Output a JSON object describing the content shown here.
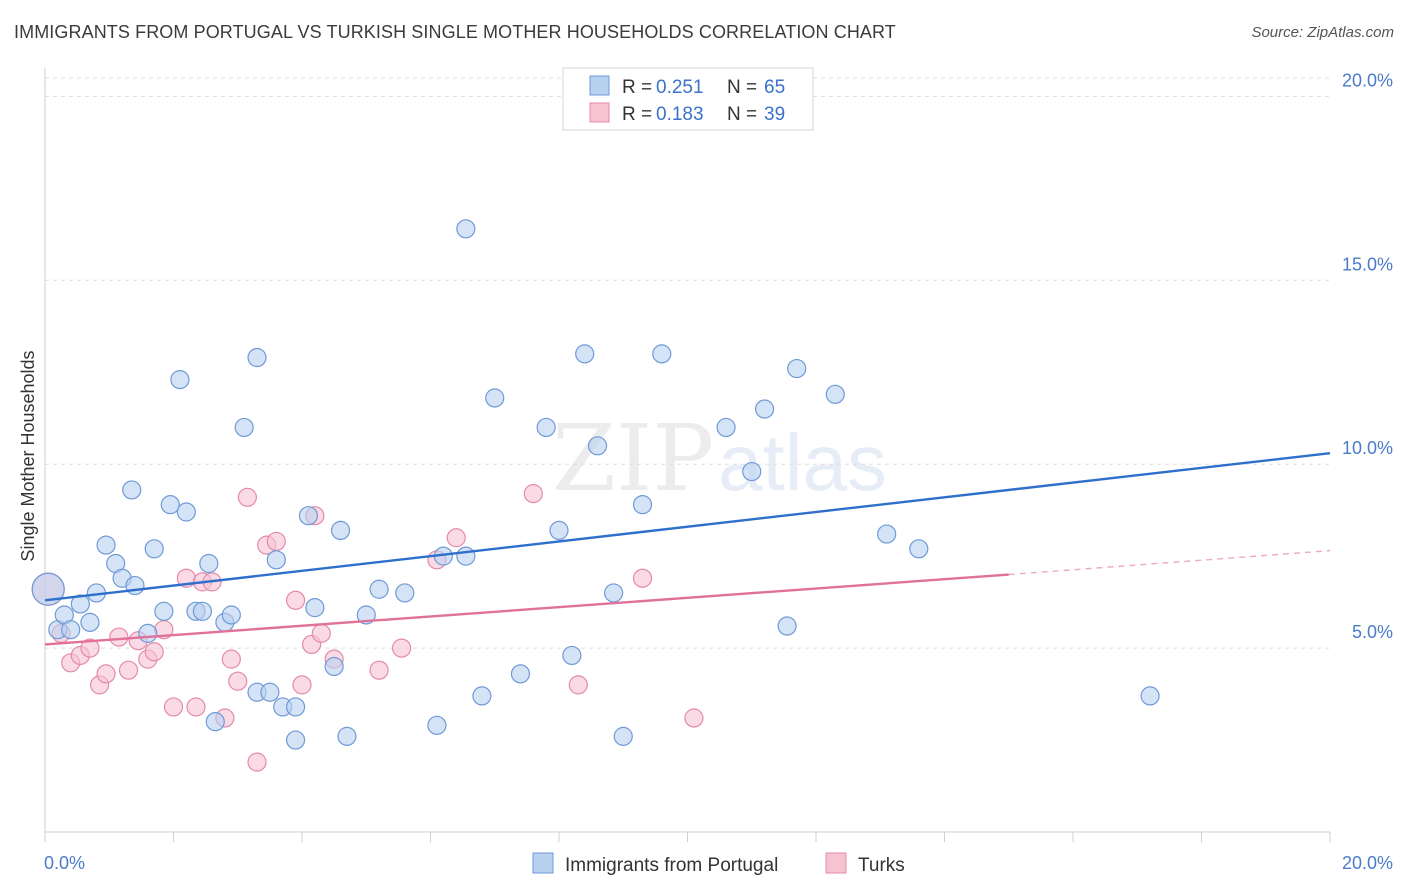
{
  "header": {
    "title": "IMMIGRANTS FROM PORTUGAL VS TURKISH SINGLE MOTHER HOUSEHOLDS CORRELATION CHART",
    "source": "Source: ZipAtlas.com"
  },
  "watermark": {
    "part1": "ZIP",
    "part2": "atlas"
  },
  "colors": {
    "blue_fill": "#b9d1f1",
    "blue_stroke": "#6f9ad6",
    "blue_line": "#2f6fcc",
    "pink_fill": "#f6c3d3",
    "pink_stroke": "#e48aa8",
    "pink_line": "#e0719a",
    "tick_text": "#4a7cc9",
    "grid": "#dddddd"
  },
  "legend": {
    "entries": [
      {
        "r_label": "R =",
        "r_value": "0.251",
        "n_label": "N =",
        "n_value": "65"
      },
      {
        "r_label": "R =",
        "r_value": "0.183",
        "n_label": "N =",
        "n_value": "39"
      }
    ]
  },
  "chart_data": {
    "type": "scatter",
    "ylabel": "Single Mother Households",
    "xlim": [
      0,
      20
    ],
    "ylim": [
      0,
      20.5
    ],
    "x_tick_labels": {
      "left": "0.0%",
      "right": "20.0%"
    },
    "y_ticks": [
      {
        "value": 5,
        "label": "5.0%"
      },
      {
        "value": 10,
        "label": "10.0%"
      },
      {
        "value": 15,
        "label": "15.0%"
      },
      {
        "value": 20,
        "label": "20.0%"
      }
    ],
    "grid": true,
    "series": [
      {
        "name": "Immigrants from Portugal",
        "color": "blue",
        "trend": {
          "x0": 0,
          "y0": 6.3,
          "x1": 20,
          "y1": 10.3
        },
        "points": [
          [
            0.05,
            6.6
          ],
          [
            0.2,
            5.5
          ],
          [
            0.3,
            5.9
          ],
          [
            0.4,
            5.5
          ],
          [
            0.55,
            6.2
          ],
          [
            0.7,
            5.7
          ],
          [
            0.8,
            6.5
          ],
          [
            0.95,
            7.8
          ],
          [
            1.1,
            7.3
          ],
          [
            1.2,
            6.9
          ],
          [
            1.4,
            6.7
          ],
          [
            1.6,
            5.4
          ],
          [
            1.7,
            7.7
          ],
          [
            1.35,
            9.3
          ],
          [
            1.85,
            6.0
          ],
          [
            1.95,
            8.9
          ],
          [
            2.1,
            12.3
          ],
          [
            2.2,
            8.7
          ],
          [
            2.35,
            6.0
          ],
          [
            2.45,
            6.0
          ],
          [
            2.55,
            7.3
          ],
          [
            2.65,
            3.0
          ],
          [
            2.8,
            5.7
          ],
          [
            2.9,
            5.9
          ],
          [
            3.1,
            11.0
          ],
          [
            3.3,
            12.9
          ],
          [
            3.3,
            3.8
          ],
          [
            3.5,
            3.8
          ],
          [
            3.6,
            7.4
          ],
          [
            3.7,
            3.4
          ],
          [
            3.9,
            3.4
          ],
          [
            3.9,
            2.5
          ],
          [
            4.1,
            8.6
          ],
          [
            4.2,
            6.1
          ],
          [
            4.5,
            4.5
          ],
          [
            4.6,
            8.2
          ],
          [
            4.7,
            2.6
          ],
          [
            5.0,
            5.9
          ],
          [
            5.2,
            6.6
          ],
          [
            5.6,
            6.5
          ],
          [
            6.1,
            2.9
          ],
          [
            6.2,
            7.5
          ],
          [
            6.55,
            7.5
          ],
          [
            6.55,
            16.4
          ],
          [
            6.8,
            3.7
          ],
          [
            7.0,
            11.8
          ],
          [
            7.4,
            4.3
          ],
          [
            7.8,
            11.0
          ],
          [
            8.0,
            8.2
          ],
          [
            8.2,
            4.8
          ],
          [
            8.4,
            13.0
          ],
          [
            8.6,
            10.5
          ],
          [
            8.85,
            6.5
          ],
          [
            9.0,
            2.6
          ],
          [
            9.3,
            8.9
          ],
          [
            9.6,
            13.0
          ],
          [
            10.6,
            11.0
          ],
          [
            11.0,
            9.8
          ],
          [
            11.2,
            11.5
          ],
          [
            11.55,
            5.6
          ],
          [
            11.7,
            12.6
          ],
          [
            12.3,
            11.9
          ],
          [
            13.1,
            8.1
          ],
          [
            13.6,
            7.7
          ],
          [
            17.2,
            3.7
          ]
        ]
      },
      {
        "name": "Turks",
        "color": "pink",
        "trend": {
          "x0": 0,
          "y0": 5.1,
          "x1": 15.0,
          "y1": 7.0,
          "dash_to_x": 20,
          "dash_to_y": 7.65
        },
        "points": [
          [
            0.05,
            6.6
          ],
          [
            0.25,
            5.4
          ],
          [
            0.4,
            4.6
          ],
          [
            0.55,
            4.8
          ],
          [
            0.7,
            5.0
          ],
          [
            0.85,
            4.0
          ],
          [
            0.95,
            4.3
          ],
          [
            1.15,
            5.3
          ],
          [
            1.3,
            4.4
          ],
          [
            1.45,
            5.2
          ],
          [
            1.6,
            4.7
          ],
          [
            1.7,
            4.9
          ],
          [
            1.85,
            5.5
          ],
          [
            2.0,
            3.4
          ],
          [
            2.2,
            6.9
          ],
          [
            2.35,
            3.4
          ],
          [
            2.45,
            6.8
          ],
          [
            2.6,
            6.8
          ],
          [
            2.8,
            3.1
          ],
          [
            2.9,
            4.7
          ],
          [
            3.0,
            4.1
          ],
          [
            3.15,
            9.1
          ],
          [
            3.3,
            1.9
          ],
          [
            3.45,
            7.8
          ],
          [
            3.6,
            7.9
          ],
          [
            3.9,
            6.3
          ],
          [
            4.0,
            4.0
          ],
          [
            4.15,
            5.1
          ],
          [
            4.2,
            8.6
          ],
          [
            4.3,
            5.4
          ],
          [
            4.5,
            4.7
          ],
          [
            5.2,
            4.4
          ],
          [
            5.55,
            5.0
          ],
          [
            6.1,
            7.4
          ],
          [
            6.4,
            8.0
          ],
          [
            7.6,
            9.2
          ],
          [
            8.3,
            4.0
          ],
          [
            9.3,
            6.9
          ],
          [
            10.1,
            3.1
          ]
        ]
      }
    ]
  },
  "bottom_legend": {
    "items": [
      {
        "label": "Immigrants from Portugal"
      },
      {
        "label": "Turks"
      }
    ]
  }
}
